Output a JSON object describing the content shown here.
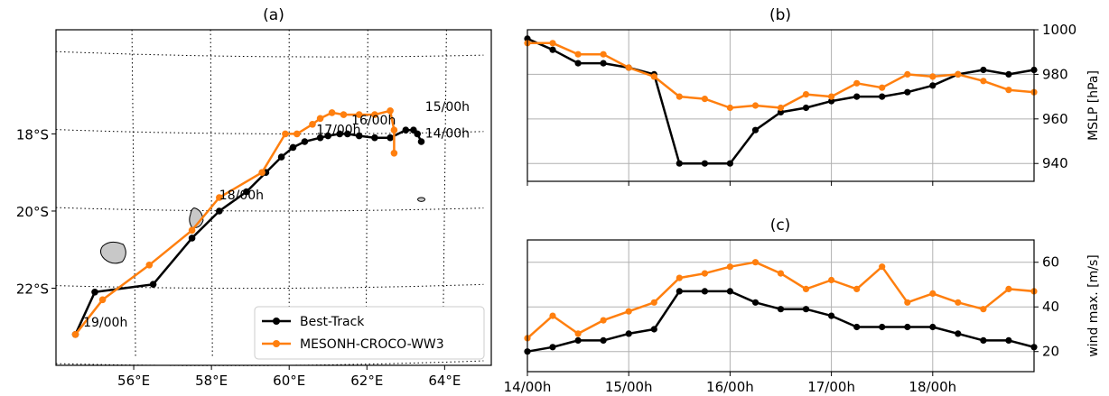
{
  "chart_data": [
    {
      "panel": "(a)",
      "type": "scatter",
      "title": "(a)",
      "x_ticks": [
        "56°E",
        "58°E",
        "60°E",
        "62°E",
        "64°E"
      ],
      "y_ticks": [
        "18°S",
        "20°S",
        "22°S"
      ],
      "xlim": [
        54.0,
        65.2
      ],
      "ylim": [
        -24.0,
        -15.3
      ],
      "legend": {
        "placement": "lower-right"
      },
      "annotations": [
        {
          "text": "15/00h",
          "lon": 63.5,
          "lat": -17.4
        },
        {
          "text": "14/00h",
          "lon": 63.5,
          "lat": -18.1
        },
        {
          "text": "16/00h",
          "lon": 61.6,
          "lat": -17.75
        },
        {
          "text": "17/00h",
          "lon": 60.7,
          "lat": -18.0
        },
        {
          "text": "18/00h",
          "lon": 58.2,
          "lat": -19.7
        },
        {
          "text": "19/00h",
          "lon": 54.7,
          "lat": -23.0
        }
      ],
      "islands": [
        {
          "name": "reunion",
          "lon": 55.5,
          "lat": -21.1
        },
        {
          "name": "mauritius",
          "lon": 57.6,
          "lat": -20.2
        },
        {
          "name": "rodrigues",
          "lon": 63.4,
          "lat": -19.7
        }
      ],
      "series": [
        {
          "name": "Best-Track",
          "color": "#000000",
          "lon": [
            63.4,
            63.3,
            63.2,
            63.0,
            62.6,
            62.2,
            61.8,
            61.5,
            61.3,
            61.0,
            60.8,
            60.4,
            60.1,
            59.8,
            59.4,
            58.9,
            58.2,
            57.5,
            56.5,
            55.0,
            54.5
          ],
          "lat": [
            -18.2,
            -18.0,
            -17.9,
            -17.9,
            -18.1,
            -18.1,
            -18.05,
            -18.0,
            -18.0,
            -18.05,
            -18.1,
            -18.2,
            -18.35,
            -18.6,
            -19.0,
            -19.5,
            -20.0,
            -20.7,
            -21.9,
            -22.1,
            -23.2
          ]
        },
        {
          "name": "MESONH-CROCO-WW3",
          "color": "#ff7f0e",
          "lon": [
            62.7,
            62.7,
            62.6,
            62.2,
            61.8,
            61.4,
            61.1,
            60.8,
            60.6,
            60.2,
            59.9,
            59.3,
            58.2,
            57.5,
            56.4,
            55.2,
            54.5
          ],
          "lat": [
            -18.5,
            -17.9,
            -17.4,
            -17.5,
            -17.5,
            -17.5,
            -17.45,
            -17.6,
            -17.75,
            -18.0,
            -18.0,
            -19.0,
            -19.65,
            -20.5,
            -21.4,
            -22.3,
            -23.2
          ]
        }
      ]
    },
    {
      "panel": "(b)",
      "type": "line",
      "title": "(b)",
      "ylabel": "MSLP [hPa]",
      "xlim": [
        0,
        20
      ],
      "ylim": [
        932,
        1000
      ],
      "y_ticks": [
        940,
        960,
        980,
        1000
      ],
      "x_ticks": [
        {
          "label": "14/00h",
          "x": 0
        },
        {
          "label": "15/00h",
          "x": 4
        },
        {
          "label": "16/00h",
          "x": 8
        },
        {
          "label": "17/00h",
          "x": 12
        },
        {
          "label": "18/00h",
          "x": 16
        }
      ],
      "series": [
        {
          "name": "Best-Track",
          "color": "#000000",
          "x": [
            0,
            1,
            2,
            3,
            4,
            5,
            6,
            7,
            8,
            9,
            10,
            11,
            12,
            13,
            14,
            15,
            16,
            17,
            18,
            19,
            20
          ],
          "values": [
            996,
            991,
            985,
            985,
            983,
            980,
            940,
            940,
            940,
            955,
            963,
            965,
            968,
            970,
            970,
            972,
            975,
            980,
            982,
            980,
            982
          ]
        },
        {
          "name": "MESONH-CROCO-WW3",
          "color": "#ff7f0e",
          "x": [
            0,
            1,
            2,
            3,
            4,
            5,
            6,
            7,
            8,
            9,
            10,
            11,
            12,
            13,
            14,
            15,
            16,
            17,
            18,
            19,
            20
          ],
          "values": [
            994,
            994,
            989,
            989,
            983,
            979,
            970,
            969,
            965,
            966,
            965,
            971,
            970,
            976,
            974,
            980,
            979,
            980,
            977,
            973,
            972
          ]
        }
      ]
    },
    {
      "panel": "(c)",
      "type": "line",
      "title": "(c)",
      "ylabel": "wind max. [m/s]",
      "xlim": [
        0,
        20
      ],
      "ylim": [
        11,
        70
      ],
      "y_ticks": [
        20,
        40,
        60
      ],
      "x_ticks": [
        {
          "label": "14/00h",
          "x": 0
        },
        {
          "label": "15/00h",
          "x": 4
        },
        {
          "label": "16/00h",
          "x": 8
        },
        {
          "label": "17/00h",
          "x": 12
        },
        {
          "label": "18/00h",
          "x": 16
        }
      ],
      "series": [
        {
          "name": "Best-Track",
          "color": "#000000",
          "x": [
            0,
            1,
            2,
            3,
            4,
            5,
            6,
            7,
            8,
            9,
            10,
            11,
            12,
            13,
            14,
            15,
            16,
            17,
            18,
            19,
            20
          ],
          "values": [
            20,
            22,
            25,
            25,
            28,
            30,
            47,
            47,
            47,
            42,
            39,
            39,
            36,
            31,
            31,
            31,
            31,
            28,
            25,
            25,
            22
          ]
        },
        {
          "name": "MESONH-CROCO-WW3",
          "color": "#ff7f0e",
          "x": [
            0,
            1,
            2,
            3,
            4,
            5,
            6,
            7,
            8,
            9,
            10,
            11,
            12,
            13,
            14,
            15,
            16,
            17,
            18,
            19,
            20
          ],
          "values": [
            26,
            36,
            28,
            34,
            38,
            42,
            53,
            55,
            58,
            60,
            55,
            48,
            52,
            48,
            58,
            42,
            46,
            42,
            39,
            48,
            47
          ]
        }
      ]
    }
  ]
}
